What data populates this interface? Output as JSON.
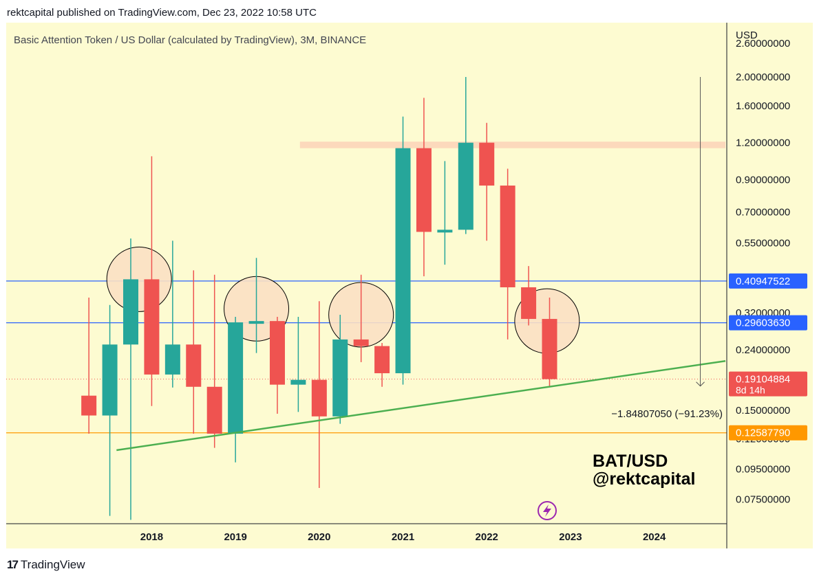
{
  "header": {
    "published": "rektcapital published on TradingView.com, Dec 23, 2022 10:58 UTC"
  },
  "chart_data": {
    "type": "candlestick",
    "title": "Basic Attention Token / US Dollar (calculated by TradingView), 3M, BINANCE",
    "currency_label": "USD",
    "y_scale": "log",
    "ylim": [
      0.0621,
      3.05
    ],
    "y_ticks": [
      {
        "value": 2.6,
        "label": "2.60000000"
      },
      {
        "value": 2.0,
        "label": "2.00000000"
      },
      {
        "value": 1.6,
        "label": "1.60000000"
      },
      {
        "value": 1.2,
        "label": "1.20000000"
      },
      {
        "value": 0.9,
        "label": "0.90000000"
      },
      {
        "value": 0.7,
        "label": "0.70000000"
      },
      {
        "value": 0.55,
        "label": "0.55000000"
      },
      {
        "value": 0.32,
        "label": "0.32000000"
      },
      {
        "value": 0.24,
        "label": "0.24000000"
      },
      {
        "value": 0.15,
        "label": "0.15000000"
      },
      {
        "value": 0.12,
        "label": "0.12000000"
      },
      {
        "value": 0.095,
        "label": "0.09500000"
      },
      {
        "value": 0.075,
        "label": "0.07500000"
      }
    ],
    "x_ticks": [
      {
        "t": 2018,
        "label": "2018"
      },
      {
        "t": 2019,
        "label": "2019"
      },
      {
        "t": 2020,
        "label": "2020"
      },
      {
        "t": 2021,
        "label": "2021"
      },
      {
        "t": 2022,
        "label": "2022"
      },
      {
        "t": 2023,
        "label": "2023"
      },
      {
        "t": 2024,
        "label": "2024"
      }
    ],
    "candles": [
      {
        "t": 2017.25,
        "o": 0.168,
        "h": 0.36,
        "l": 0.125,
        "c": 0.144
      },
      {
        "t": 2017.5,
        "o": 0.144,
        "h": 0.34,
        "l": 0.066,
        "c": 0.25
      },
      {
        "t": 2017.75,
        "o": 0.25,
        "h": 0.57,
        "l": 0.064,
        "c": 0.415
      },
      {
        "t": 2018.0,
        "o": 0.415,
        "h": 1.08,
        "l": 0.155,
        "c": 0.198
      },
      {
        "t": 2018.25,
        "o": 0.198,
        "h": 0.56,
        "l": 0.179,
        "c": 0.25
      },
      {
        "t": 2018.5,
        "o": 0.25,
        "h": 0.445,
        "l": 0.125,
        "c": 0.18
      },
      {
        "t": 2018.75,
        "o": 0.18,
        "h": 0.43,
        "l": 0.112,
        "c": 0.125
      },
      {
        "t": 2019.0,
        "o": 0.125,
        "h": 0.31,
        "l": 0.1,
        "c": 0.297
      },
      {
        "t": 2019.25,
        "o": 0.297,
        "h": 0.49,
        "l": 0.234,
        "c": 0.3
      },
      {
        "t": 2019.5,
        "o": 0.3,
        "h": 0.31,
        "l": 0.146,
        "c": 0.183
      },
      {
        "t": 2019.75,
        "o": 0.183,
        "h": 0.31,
        "l": 0.148,
        "c": 0.19
      },
      {
        "t": 2020.0,
        "o": 0.19,
        "h": 0.35,
        "l": 0.082,
        "c": 0.143
      },
      {
        "t": 2020.25,
        "o": 0.143,
        "h": 0.315,
        "l": 0.135,
        "c": 0.26
      },
      {
        "t": 2020.5,
        "o": 0.26,
        "h": 0.43,
        "l": 0.218,
        "c": 0.247
      },
      {
        "t": 2020.75,
        "o": 0.247,
        "h": 0.253,
        "l": 0.18,
        "c": 0.2
      },
      {
        "t": 2021.0,
        "o": 0.2,
        "h": 1.47,
        "l": 0.183,
        "c": 1.15
      },
      {
        "t": 2021.25,
        "o": 1.15,
        "h": 1.7,
        "l": 0.425,
        "c": 0.6
      },
      {
        "t": 2021.5,
        "o": 0.6,
        "h": 1.04,
        "l": 0.465,
        "c": 0.61
      },
      {
        "t": 2021.75,
        "o": 0.61,
        "h": 2.0,
        "l": 0.59,
        "c": 1.2
      },
      {
        "t": 2022.0,
        "o": 1.2,
        "h": 1.4,
        "l": 0.56,
        "c": 0.86
      },
      {
        "t": 2022.25,
        "o": 0.86,
        "h": 0.98,
        "l": 0.26,
        "c": 0.39
      },
      {
        "t": 2022.5,
        "o": 0.39,
        "h": 0.46,
        "l": 0.29,
        "c": 0.305
      },
      {
        "t": 2022.75,
        "o": 0.305,
        "h": 0.36,
        "l": 0.18,
        "c": 0.191
      }
    ],
    "colors": {
      "up": "#26a69a",
      "down": "#ef5350",
      "background": "#fdfbd1",
      "hline": "#2962ff",
      "support": "#ff9800",
      "trendline": "#4caf50",
      "resistance_zone": "#fcd9bc",
      "circle_fill": "#fbe0c3"
    },
    "horizontal_lines": [
      {
        "value": 0.40947522,
        "label": "0.40947522",
        "color": "#2962ff"
      },
      {
        "value": 0.2960363,
        "label": "0.29603630",
        "color": "#2962ff"
      },
      {
        "value": 0.1258779,
        "label": "0.12587790",
        "color": "#ff9800"
      }
    ],
    "last_price": {
      "value": 0.19104884,
      "label": "0.19104884",
      "countdown": "8d 14h",
      "color": "#ef5350"
    },
    "resistance_zone": {
      "t_start": 2019.77,
      "t_end": 2024.85,
      "low": 1.15,
      "high": 1.21
    },
    "trendline": {
      "t1": 2017.58,
      "p1": 0.11,
      "t2": 2024.85,
      "p2": 0.22
    },
    "circles": [
      {
        "t": 2017.85,
        "p": 0.415
      },
      {
        "t": 2019.25,
        "p": 0.33
      },
      {
        "t": 2020.5,
        "p": 0.315
      },
      {
        "t": 2022.72,
        "p": 0.3
      }
    ],
    "measure": {
      "t": 2024.55,
      "from": 2.0,
      "to": 0.181,
      "label": "−1.84807050 (−91.23%)"
    },
    "annotations": [
      "BAT/USD",
      "@rektcapital"
    ],
    "grid": false
  },
  "footer": {
    "brand": "TradingView",
    "logo_glyph": "17"
  }
}
